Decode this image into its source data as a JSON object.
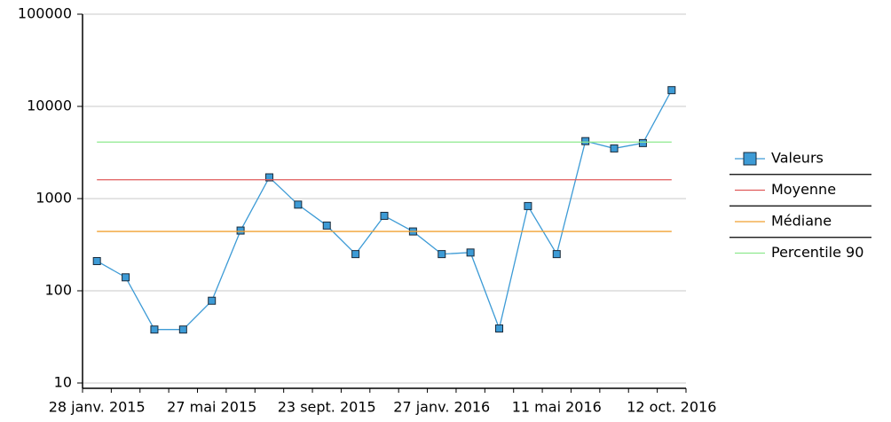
{
  "chart_data": {
    "type": "line",
    "categories": [
      "28 janv. 2015",
      null,
      null,
      null,
      "27 mai 2015",
      null,
      null,
      null,
      "23 sept. 2015",
      null,
      null,
      null,
      "27 janv. 2016",
      null,
      null,
      null,
      "11 mai 2016",
      null,
      null,
      null,
      "12 oct. 2016"
    ],
    "series": [
      {
        "name": "Valeurs",
        "color": "#3d9bd6",
        "values": [
          210,
          140,
          38,
          38,
          78,
          450,
          1700,
          860,
          510,
          250,
          650,
          440,
          250,
          260,
          39,
          830,
          250,
          4200,
          3500,
          4000,
          15000
        ]
      },
      {
        "name": "Moyenne",
        "color": "#e05a5a",
        "value": 1600
      },
      {
        "name": "Médiane",
        "color": "#f0a030",
        "value": 440
      },
      {
        "name": "Percentile 90",
        "color": "#8eea8e",
        "value": 4100
      }
    ],
    "ylim": [
      10,
      100000
    ],
    "yticks": [
      10,
      100,
      1000,
      10000,
      100000
    ],
    "log_y": true,
    "grid": true,
    "legend": "right"
  }
}
